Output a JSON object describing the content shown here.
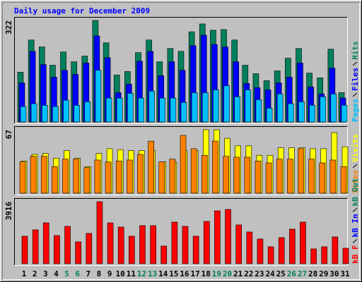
{
  "chart_data": [
    {
      "type": "bar",
      "title": "Daily usage for December 2009",
      "title_color": "#0000ff",
      "ylim": [
        0,
        322
      ],
      "yticks": [
        322
      ],
      "series": [
        {
          "name": "Hits",
          "color": "#00805c",
          "values": [
            158,
            260,
            238,
            180,
            222,
            191,
            209,
            322,
            251,
            149,
            160,
            220,
            260,
            191,
            233,
            224,
            286,
            311,
            291,
            293,
            260,
            180,
            153,
            131,
            162,
            202,
            233,
            155,
            140,
            231,
            93
          ]
        },
        {
          "name": "Files",
          "color": "#0000ff",
          "values": [
            124,
            224,
            182,
            142,
            164,
            151,
            187,
            273,
            204,
            93,
            120,
            193,
            224,
            147,
            191,
            164,
            242,
            275,
            246,
            238,
            191,
            122,
            109,
            102,
            124,
            142,
            187,
            111,
            89,
            171,
            76
          ]
        },
        {
          "name": "Pages",
          "color": "#00c0ff",
          "values": [
            49,
            58,
            53,
            49,
            69,
            53,
            64,
            164,
            76,
            76,
            91,
            76,
            98,
            76,
            76,
            62,
            93,
            93,
            102,
            115,
            80,
            102,
            71,
            44,
            89,
            58,
            64,
            53,
            80,
            89,
            53
          ]
        }
      ]
    },
    {
      "type": "bar",
      "ylim": [
        0,
        67
      ],
      "yticks": [
        67
      ],
      "series": [
        {
          "name": "Visits",
          "color": "#ffff00",
          "values": [
            34,
            41,
            42,
            37,
            45,
            37,
            28,
            42,
            47,
            46,
            45,
            45,
            45,
            33,
            33,
            45,
            45,
            67,
            67,
            58,
            50,
            50,
            40,
            40,
            48,
            48,
            48,
            47,
            47,
            64,
            49
          ]
        },
        {
          "name": "Sites",
          "color": "#ff8000",
          "values": [
            33,
            39,
            39,
            28,
            36,
            36,
            27,
            35,
            33,
            34,
            35,
            41,
            55,
            33,
            36,
            61,
            47,
            40,
            55,
            39,
            38,
            38,
            34,
            32,
            36,
            36,
            47,
            36,
            32,
            35,
            28
          ]
        }
      ]
    },
    {
      "type": "bar",
      "ylim": [
        0,
        3916
      ],
      "yticks": [
        3916
      ],
      "categories": [
        1,
        2,
        3,
        4,
        5,
        6,
        7,
        8,
        9,
        10,
        11,
        12,
        13,
        14,
        15,
        16,
        17,
        18,
        19,
        20,
        21,
        22,
        23,
        24,
        25,
        26,
        27,
        28,
        29,
        30,
        31
      ],
      "category_color": "#000000",
      "weekend_color": "#00805c",
      "weekend_days": [
        5,
        6,
        12,
        13,
        19,
        20,
        26,
        27
      ],
      "series": [
        {
          "name": "kB Out",
          "color": "#00805c",
          "values": [
            0,
            0,
            0,
            0,
            0,
            0,
            0,
            0,
            0,
            0,
            0,
            0,
            0,
            0,
            0,
            0,
            0,
            0,
            0,
            0,
            0,
            0,
            0,
            0,
            0,
            0,
            0,
            0,
            0,
            0,
            0
          ]
        },
        {
          "name": "kB In",
          "color": "#0000ff",
          "values": [
            0,
            0,
            0,
            0,
            0,
            0,
            0,
            0,
            0,
            0,
            0,
            0,
            0,
            0,
            0,
            0,
            0,
            0,
            0,
            0,
            0,
            0,
            0,
            0,
            0,
            0,
            0,
            0,
            0,
            0,
            0
          ]
        },
        {
          "name": "kB F",
          "color": "#ff0000",
          "values": [
            1736,
            2136,
            2581,
            1780,
            2359,
            1380,
            1914,
            3916,
            2581,
            2314,
            1736,
            2403,
            2403,
            1113,
            2626,
            2359,
            1736,
            2670,
            3338,
            3427,
            2448,
            2003,
            1558,
            1068,
            1647,
            2181,
            2626,
            935,
            1068,
            1691,
            979
          ]
        }
      ]
    }
  ]
}
